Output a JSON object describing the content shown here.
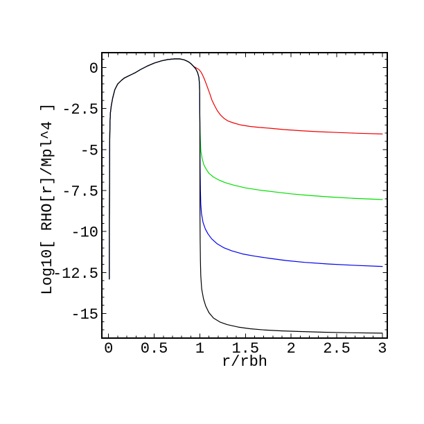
{
  "figure": {
    "background": "#ffffff",
    "title": ""
  },
  "chart_data": {
    "type": "line",
    "title": "",
    "xlabel": "r/rbh",
    "ylabel": "Log10[ RHO[r]/Mpl^4 ]",
    "frame": true,
    "grid": false,
    "legend": "none",
    "xlim": [
      -0.074,
      3.054
    ],
    "ylim": [
      -16.5,
      0.91
    ],
    "x_ticks": {
      "major": [
        0,
        0.5,
        1,
        1.5,
        2,
        2.5,
        3
      ],
      "labels": [
        "0",
        "0.5",
        "1",
        "1.5",
        "2",
        "2.5",
        "3"
      ],
      "minor_step": 0.1
    },
    "y_ticks": {
      "major": [
        0,
        -2.5,
        -5,
        -7.5,
        -10,
        -12.5,
        -15
      ],
      "labels": [
        "0",
        "-2.5",
        "-5",
        "-7.5",
        "-10",
        "-12.5",
        "-15"
      ],
      "minor_step": 0.5
    },
    "common_rise": [
      [
        0.008,
        -12.9
      ],
      [
        0.009,
        -9.5
      ],
      [
        0.01,
        -7.0
      ],
      [
        0.011,
        -5.2
      ],
      [
        0.013,
        -4.0
      ],
      [
        0.016,
        -3.2
      ],
      [
        0.02,
        -2.75
      ],
      [
        0.03,
        -2.3
      ],
      [
        0.045,
        -1.85
      ],
      [
        0.068,
        -1.35
      ],
      [
        0.1,
        -1.0
      ],
      [
        0.14,
        -0.78
      ],
      [
        0.175,
        -0.63
      ],
      [
        0.215,
        -0.52
      ],
      [
        0.26,
        -0.4
      ],
      [
        0.29,
        -0.32
      ],
      [
        0.35,
        -0.12
      ],
      [
        0.42,
        0.08
      ],
      [
        0.5,
        0.27
      ],
      [
        0.58,
        0.41
      ],
      [
        0.65,
        0.49
      ],
      [
        0.72,
        0.53
      ],
      [
        0.78,
        0.53
      ],
      [
        0.83,
        0.47
      ],
      [
        0.87,
        0.37
      ],
      [
        0.9,
        0.25
      ],
      [
        0.93,
        0.08
      ]
    ],
    "series": [
      {
        "name": "red",
        "color": "#ee0000",
        "plateau_approx": -4.0,
        "points": [
          [
            0.96,
            -0.02
          ],
          [
            0.99,
            -0.12
          ],
          [
            1.01,
            -0.25
          ],
          [
            1.03,
            -0.45
          ],
          [
            1.05,
            -0.7
          ],
          [
            1.07,
            -1.0
          ],
          [
            1.09,
            -1.3
          ],
          [
            1.11,
            -1.6
          ],
          [
            1.13,
            -1.95
          ],
          [
            1.16,
            -2.3
          ],
          [
            1.19,
            -2.62
          ],
          [
            1.23,
            -2.92
          ],
          [
            1.27,
            -3.12
          ],
          [
            1.31,
            -3.26
          ],
          [
            1.37,
            -3.38
          ],
          [
            1.45,
            -3.5
          ],
          [
            1.55,
            -3.59
          ],
          [
            1.65,
            -3.65
          ],
          [
            1.77,
            -3.7
          ],
          [
            1.92,
            -3.78
          ],
          [
            2.1,
            -3.85
          ],
          [
            2.3,
            -3.91
          ],
          [
            2.5,
            -3.96
          ],
          [
            2.7,
            -4.0
          ],
          [
            3.0,
            -4.05
          ]
        ]
      },
      {
        "name": "green",
        "color": "#00dd00",
        "plateau_approx": -8.0,
        "points": [
          [
            0.955,
            -0.08
          ],
          [
            0.975,
            -0.3
          ],
          [
            0.99,
            -0.6
          ],
          [
            0.996,
            -1.0
          ],
          [
            0.998,
            -1.6
          ],
          [
            0.999,
            -2.4
          ],
          [
            1.0,
            -3.3
          ],
          [
            1.003,
            -4.0
          ],
          [
            1.007,
            -4.6
          ],
          [
            1.012,
            -5.1
          ],
          [
            1.025,
            -5.55
          ],
          [
            1.045,
            -5.95
          ],
          [
            1.07,
            -6.2
          ],
          [
            1.1,
            -6.45
          ],
          [
            1.15,
            -6.68
          ],
          [
            1.21,
            -6.86
          ],
          [
            1.28,
            -7.02
          ],
          [
            1.37,
            -7.17
          ],
          [
            1.5,
            -7.34
          ],
          [
            1.65,
            -7.47
          ],
          [
            1.8,
            -7.57
          ],
          [
            2.0,
            -7.7
          ],
          [
            2.2,
            -7.8
          ],
          [
            2.45,
            -7.9
          ],
          [
            2.7,
            -7.98
          ],
          [
            3.0,
            -8.05
          ]
        ]
      },
      {
        "name": "blue",
        "color": "#0000ee",
        "plateau_approx": -12.1,
        "points": [
          [
            0.955,
            -0.08
          ],
          [
            0.975,
            -0.3
          ],
          [
            0.99,
            -0.6
          ],
          [
            0.996,
            -1.0
          ],
          [
            0.998,
            -1.6
          ],
          [
            0.999,
            -2.4
          ],
          [
            1.0,
            -3.3
          ],
          [
            1.001,
            -4.8
          ],
          [
            1.003,
            -6.3
          ],
          [
            1.006,
            -7.5
          ],
          [
            1.01,
            -8.3
          ],
          [
            1.018,
            -8.9
          ],
          [
            1.035,
            -9.45
          ],
          [
            1.06,
            -9.85
          ],
          [
            1.09,
            -10.15
          ],
          [
            1.13,
            -10.45
          ],
          [
            1.19,
            -10.75
          ],
          [
            1.26,
            -10.98
          ],
          [
            1.35,
            -11.18
          ],
          [
            1.47,
            -11.37
          ],
          [
            1.6,
            -11.5
          ],
          [
            1.77,
            -11.64
          ],
          [
            1.95,
            -11.77
          ],
          [
            2.15,
            -11.88
          ],
          [
            2.4,
            -11.98
          ],
          [
            2.65,
            -12.05
          ],
          [
            3.0,
            -12.13
          ]
        ]
      },
      {
        "name": "black",
        "color": "#000000",
        "plateau_approx": -16.2,
        "points": [
          [
            0.955,
            -0.08
          ],
          [
            0.975,
            -0.3
          ],
          [
            0.99,
            -0.6
          ],
          [
            0.996,
            -1.0
          ],
          [
            0.998,
            -1.6
          ],
          [
            0.999,
            -2.4
          ],
          [
            1.0,
            -3.3
          ],
          [
            1.0005,
            -6.0
          ],
          [
            1.001,
            -8.5
          ],
          [
            1.003,
            -10.5
          ],
          [
            1.006,
            -11.8
          ],
          [
            1.01,
            -12.7
          ],
          [
            1.02,
            -13.5
          ],
          [
            1.04,
            -14.1
          ],
          [
            1.065,
            -14.55
          ],
          [
            1.1,
            -14.95
          ],
          [
            1.15,
            -15.28
          ],
          [
            1.22,
            -15.52
          ],
          [
            1.3,
            -15.68
          ],
          [
            1.42,
            -15.83
          ],
          [
            1.55,
            -15.93
          ],
          [
            1.7,
            -16.0
          ],
          [
            1.9,
            -16.06
          ],
          [
            2.1,
            -16.1
          ],
          [
            2.35,
            -16.14
          ],
          [
            2.6,
            -16.17
          ],
          [
            3.0,
            -16.2
          ]
        ]
      }
    ]
  }
}
